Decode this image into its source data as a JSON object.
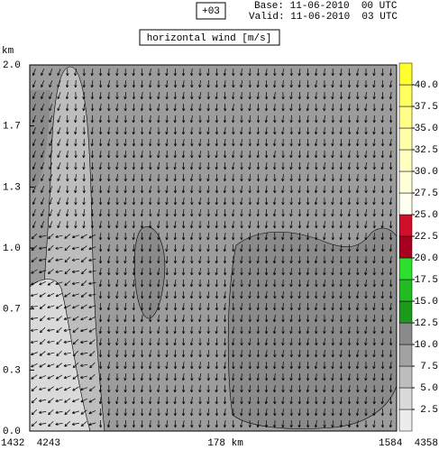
{
  "header": {
    "lead": "+03",
    "base": "Base: 11-06-2010  00 UTC",
    "valid": "Valid: 11-06-2010  03 UTC"
  },
  "chart_data": {
    "type": "cross-section",
    "title": "horizontal wind [m/s]",
    "y_label": "km",
    "ylim": [
      0,
      2.0
    ],
    "yticks": [
      {
        "value": 0,
        "label": "0.0"
      },
      {
        "value": 0.333,
        "label": "0.3"
      },
      {
        "value": 0.667,
        "label": "0.7"
      },
      {
        "value": 1.0,
        "label": "1.0"
      },
      {
        "value": 1.333,
        "label": "1.3"
      },
      {
        "value": 1.667,
        "label": "1.7"
      },
      {
        "value": 2.0,
        "label": "2.0"
      }
    ],
    "x_labels": {
      "left": "1432  4243",
      "center": "178 km",
      "right": "1584  4358"
    },
    "colorbar": {
      "levels": [
        0,
        2.5,
        5,
        7.5,
        10,
        12.5,
        15,
        17.5,
        20,
        22.5,
        25,
        27.5,
        30,
        32.5,
        35,
        37.5,
        40,
        42.5
      ],
      "colors": [
        "#ececec",
        "#dadada",
        "#bdbdbd",
        "#a2a2a2",
        "#8a8a8a",
        "#1b9a1b",
        "#22bb22",
        "#2ee02e",
        "#a8001e",
        "#d0102a",
        "#fffff0",
        "#ffffd8",
        "#ffffc0",
        "#ffffa8",
        "#ffff88",
        "#ffff60",
        "#ffff30"
      ],
      "ticks": [
        2.5,
        {
          "value": 5,
          "label": "5.0"
        },
        7.5,
        {
          "value": 10,
          "label": "10.0"
        },
        12.5,
        {
          "value": 15,
          "label": "15.0"
        },
        17.5,
        {
          "value": 20,
          "label": "20.0"
        },
        22.5,
        {
          "value": 25,
          "label": "25.0"
        },
        27.5,
        {
          "value": 30,
          "label": "30.0"
        },
        32.5,
        {
          "value": 35,
          "label": "35.0"
        },
        37.5,
        {
          "value": 40,
          "label": "40.0"
        }
      ]
    }
  }
}
